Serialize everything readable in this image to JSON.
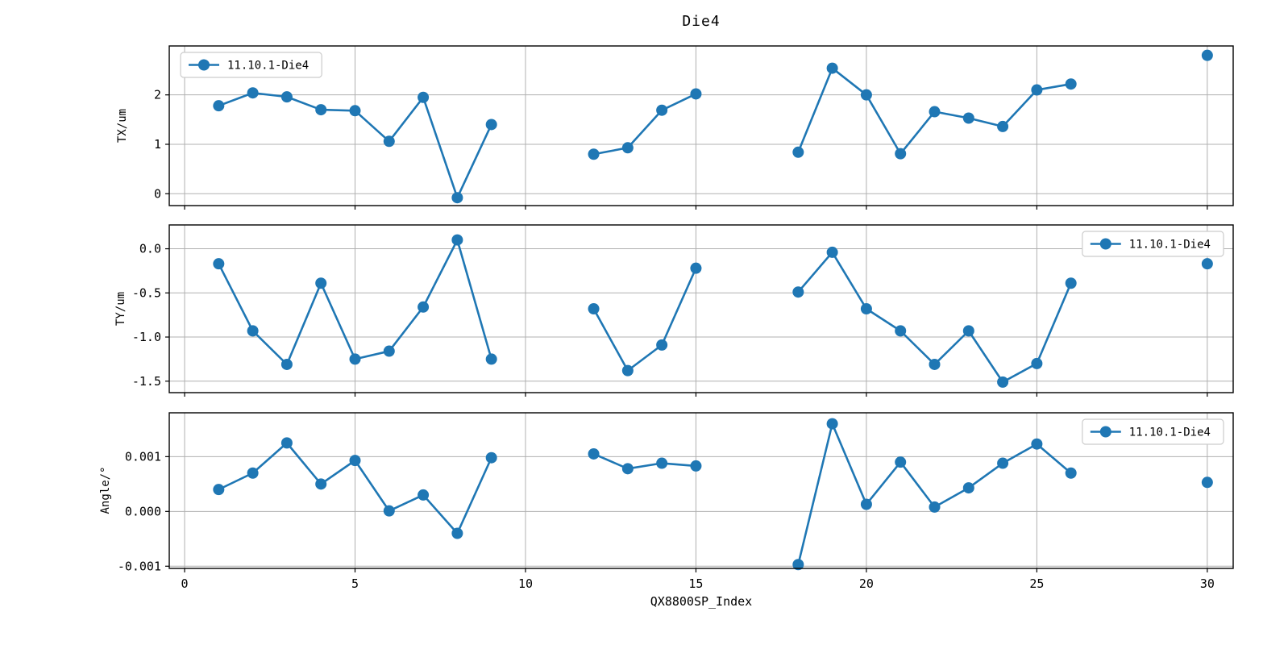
{
  "title": "Die4",
  "xlabel": "QX8800SP_Index",
  "series_name": "11.10.1-Die4",
  "colors": {
    "line": "#1f77b4",
    "grid": "#b0b0b0",
    "spine": "#000000",
    "legend_border": "#cccccc",
    "background": "#ffffff"
  },
  "xlim": [
    -0.45,
    30.76
  ],
  "xticks": [
    0,
    5,
    10,
    15,
    20,
    25,
    30
  ],
  "xtick_labels": [
    "0",
    "5",
    "10",
    "15",
    "20",
    "25",
    "30"
  ],
  "chart_data": [
    {
      "type": "line",
      "id": "tx",
      "ylabel": "TX/um",
      "legend": [
        "11.10.1-Die4"
      ],
      "legend_position": "upper left",
      "grid": true,
      "x": [
        1,
        2,
        3,
        4,
        5,
        6,
        7,
        8,
        9,
        12,
        13,
        14,
        15,
        18,
        19,
        20,
        21,
        22,
        23,
        24,
        25,
        26,
        30
      ],
      "values": [
        1.78,
        2.04,
        1.96,
        1.7,
        1.68,
        1.06,
        1.95,
        -0.08,
        1.4,
        0.8,
        0.93,
        1.69,
        2.02,
        0.84,
        2.54,
        2.0,
        0.81,
        1.66,
        1.53,
        1.36,
        2.1,
        2.22,
        2.8
      ],
      "ylim": [
        -0.24,
        2.99
      ],
      "yticks": [
        0,
        1,
        2
      ],
      "ytick_labels": [
        "0",
        "1",
        "2"
      ]
    },
    {
      "type": "line",
      "id": "ty",
      "ylabel": "TY/um",
      "legend": [
        "11.10.1-Die4"
      ],
      "legend_position": "upper right",
      "grid": true,
      "x": [
        1,
        2,
        3,
        4,
        5,
        6,
        7,
        8,
        9,
        12,
        13,
        14,
        15,
        18,
        19,
        20,
        21,
        22,
        23,
        24,
        25,
        26,
        30
      ],
      "values": [
        -0.17,
        -0.93,
        -1.31,
        -0.39,
        -1.25,
        -1.16,
        -0.66,
        0.1,
        -1.25,
        -0.68,
        -1.38,
        -1.09,
        -0.22,
        -0.49,
        -0.04,
        -0.68,
        -0.93,
        -1.31,
        -0.93,
        -1.51,
        -1.3,
        -0.39,
        -0.17
      ],
      "ylim": [
        -1.63,
        0.27
      ],
      "yticks": [
        0.0,
        -0.5,
        -1.0,
        -1.5
      ],
      "ytick_labels": [
        "0.0",
        "-0.5",
        "-1.0",
        "-1.5"
      ]
    },
    {
      "type": "line",
      "id": "angle",
      "ylabel": "Angle/°",
      "legend": [
        "11.10.1-Die4"
      ],
      "legend_position": "upper right",
      "grid": true,
      "x": [
        1,
        2,
        3,
        4,
        5,
        6,
        7,
        8,
        9,
        12,
        13,
        14,
        15,
        18,
        19,
        20,
        21,
        22,
        23,
        24,
        25,
        26,
        30
      ],
      "values": [
        0.0004,
        0.0007,
        0.00125,
        0.0005,
        0.00093,
        1e-05,
        0.0003,
        -0.0004,
        0.00098,
        0.00105,
        0.00078,
        0.00088,
        0.00083,
        -0.00097,
        0.0016,
        0.00013,
        0.0009,
        8e-05,
        0.00043,
        0.00088,
        0.00123,
        0.0007,
        0.00053
      ],
      "ylim": [
        -0.00104,
        0.0018
      ],
      "yticks": [
        0.001,
        0.0,
        -0.001
      ],
      "ytick_labels": [
        "0.001",
        "0.000",
        "-0.001"
      ]
    }
  ]
}
